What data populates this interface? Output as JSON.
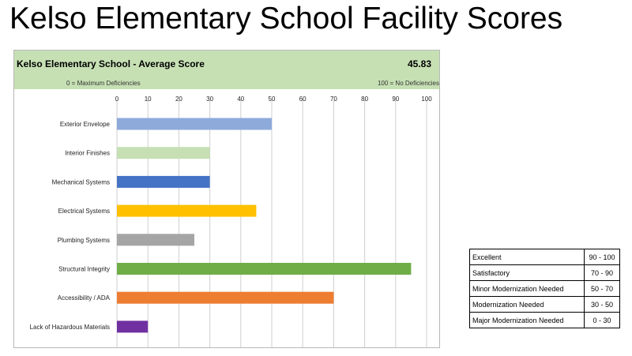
{
  "slide": {
    "title": "Kelso Elementary School Facility Scores"
  },
  "panel": {
    "title": "Kelso Elementary School - Average Score",
    "score": "45.83",
    "scale_min_label": "0 = Maximum Deficiencies",
    "scale_max_label": "100 = No Deficiencies",
    "header_color": "#c6e0b4"
  },
  "chart_data": {
    "type": "bar",
    "orientation": "horizontal",
    "title": "Kelso Elementary School - Average Score",
    "xlim": [
      0,
      100
    ],
    "xticks": [
      0,
      10,
      20,
      30,
      40,
      50,
      60,
      70,
      80,
      90,
      100
    ],
    "grid": true,
    "categories": [
      "Exterior Envelope",
      "Interior Finishes",
      "Mechanical Systems",
      "Electrical Systems",
      "Plumbing Systems",
      "Structural Integrity",
      "Accessibility / ADA",
      "Lack of Hazardous Materials"
    ],
    "values": [
      50,
      30,
      30,
      45,
      25,
      95,
      70,
      10
    ],
    "colors": [
      "#8eaadb",
      "#c6e0b4",
      "#4472c4",
      "#ffc000",
      "#a5a5a5",
      "#70ad47",
      "#ed7d31",
      "#7030a0"
    ]
  },
  "legend": [
    {
      "label": "Excellent",
      "range": "90 - 100"
    },
    {
      "label": "Satisfactory",
      "range": "70 - 90"
    },
    {
      "label": "Minor Modernization Needed",
      "range": "50 - 70"
    },
    {
      "label": "Modernization Needed",
      "range": "30 - 50"
    },
    {
      "label": "Major Modernization Needed",
      "range": "0 - 30"
    }
  ]
}
